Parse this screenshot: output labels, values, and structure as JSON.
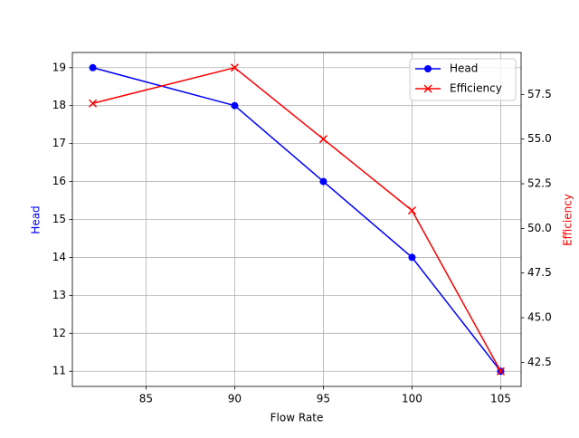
{
  "chart_data": {
    "type": "line",
    "xlabel": "Flow Rate",
    "ylabel": "Head",
    "y2label": "Efficiency",
    "x": [
      82,
      90,
      95,
      100,
      105
    ],
    "series": [
      {
        "name": "Head",
        "color": "#0000ff",
        "marker": "o",
        "values": [
          19,
          18,
          16,
          14,
          11
        ]
      },
      {
        "name": "Efficiency",
        "color": "#ff0000",
        "marker": "x",
        "axis": "y2",
        "values": [
          57,
          59,
          55,
          51,
          42
        ]
      }
    ],
    "xlim": [
      80.85,
      106.15
    ],
    "xticks": [
      85,
      90,
      95,
      100,
      105
    ],
    "ylim": [
      10.6,
      19.4
    ],
    "yticks": [
      11,
      12,
      13,
      14,
      15,
      16,
      17,
      18,
      19
    ],
    "y2lim": [
      41.15,
      59.85
    ],
    "y2ticks": [
      42.5,
      {
        "value": 45,
        "label": "45.0"
      },
      47.5,
      {
        "value": 50,
        "label": "50.0"
      },
      52.5,
      {
        "value": 55,
        "label": "55.0"
      },
      57.5
    ],
    "grid": true,
    "legend": "upper right"
  }
}
